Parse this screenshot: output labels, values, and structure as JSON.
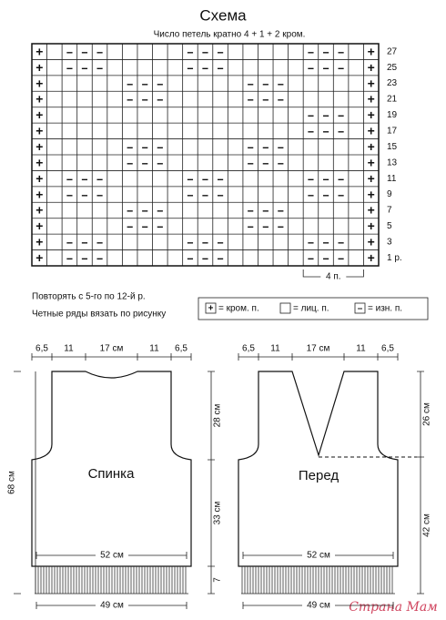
{
  "scheme": {
    "title": "Схема",
    "subtitle": "Число петель кратно 4 + 1 + 2 кром.",
    "rows": [
      {
        "label": "27",
        "cells": "+ –––     –––     ––– +"
      },
      {
        "label": "25",
        "cells": "+ –––     –––     ––– +"
      },
      {
        "label": "23",
        "cells": "+     –––     –––     +"
      },
      {
        "label": "21",
        "cells": "+     –––     –––     +"
      },
      {
        "label": "19",
        "cells": "+                 ––– +"
      },
      {
        "label": "17",
        "cells": "+                 ––– +"
      },
      {
        "label": "15",
        "cells": "+     –––     –––     +"
      },
      {
        "label": "13",
        "cells": "+     –––     –––     +"
      },
      {
        "label": "11",
        "cells": "+ –––     –––     ––– +"
      },
      {
        "label": "9",
        "cells": "+ –––     –––     ––– +"
      },
      {
        "label": "7",
        "cells": "+     –––     –––     +"
      },
      {
        "label": "5",
        "cells": "+     –––     –––     +"
      },
      {
        "label": "3",
        "cells": "+ –––     –––     ––– +"
      },
      {
        "label": "1 р.",
        "cells": "+ –––     –––     ––– +"
      }
    ],
    "repeat_label": "4 п."
  },
  "notes": [
    "Повторять с 5-го по 12-й р.",
    "Четные ряды вязать по рисунку"
  ],
  "legend": [
    {
      "symbol": "+",
      "label": "= кром. п."
    },
    {
      "label": "= лиц. п."
    },
    {
      "symbol": "–",
      "label": "= изн. п."
    }
  ],
  "back": {
    "title": "Спинка",
    "top_widths": [
      "6,5",
      "11",
      "17 см",
      "11",
      "6,5"
    ],
    "total_height": "68 см",
    "upper_height": "28 см",
    "lower_height": "33 см",
    "fringe_height": "7",
    "width": "52 см",
    "fringe_width": "49 см"
  },
  "front": {
    "title": "Перед",
    "top_widths": [
      "6,5",
      "11",
      "17 см",
      "11",
      "6,5"
    ],
    "upper_height": "26 см",
    "lower_height": "42 см",
    "width": "52 см",
    "fringe_width": "49 см"
  },
  "watermark": "Страна Мам"
}
